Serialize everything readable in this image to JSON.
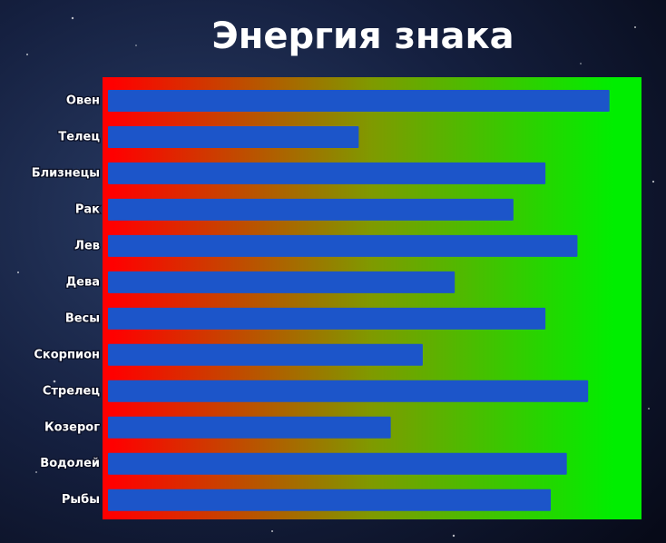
{
  "chart_data": {
    "type": "bar",
    "orientation": "horizontal",
    "title": "Энергия знака",
    "categories": [
      "Овен",
      "Телец",
      "Близнецы",
      "Рак",
      "Лев",
      "Дева",
      "Весы",
      "Скорпион",
      "Стрелец",
      "Козерог",
      "Водолей",
      "Рыбы"
    ],
    "values": [
      94,
      47,
      82,
      76,
      88,
      65,
      82,
      59,
      90,
      53,
      86,
      83
    ],
    "color": "#1c55c9",
    "xlim": [
      0,
      100
    ],
    "background_colors": [
      "#ff0000",
      "#00ee00"
    ]
  }
}
